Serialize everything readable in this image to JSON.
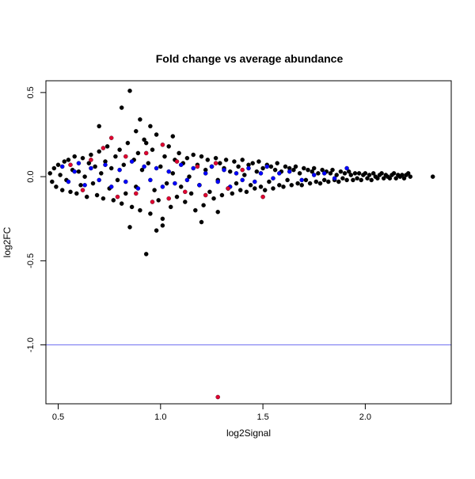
{
  "chart_data": {
    "type": "scatter",
    "title": "Fold change vs average abundance",
    "xlabel": "log2Signal",
    "ylabel": "log2FC",
    "xlim": [
      0.44,
      2.42
    ],
    "ylim": [
      -1.35,
      0.57
    ],
    "x_ticks": [
      0.5,
      1.0,
      1.5,
      2.0
    ],
    "x_tick_labels": [
      "0.5",
      "1.0",
      "1.5",
      "2.0"
    ],
    "y_ticks": [
      0.5,
      0.0,
      -0.5,
      -1.0
    ],
    "y_tick_labels": [
      "0.5",
      "0.0",
      "-0.5",
      "-1.0"
    ],
    "reference_line": {
      "y": -1.0,
      "color": "#6e6ef0"
    },
    "grid": false,
    "legend": "none",
    "colors": {
      "background_genes": "#000000",
      "highlight_blue": "#0000ff",
      "highlight_red": "#e00030",
      "axis": "#000000"
    },
    "series": [
      {
        "color": "#000000",
        "points": [
          [
            0.46,
            0.02
          ],
          [
            0.47,
            -0.03
          ],
          [
            0.48,
            0.05
          ],
          [
            0.49,
            -0.06
          ],
          [
            0.5,
            0.07
          ],
          [
            0.51,
            0.01
          ],
          [
            0.52,
            -0.08
          ],
          [
            0.53,
            0.09
          ],
          [
            0.54,
            -0.02
          ],
          [
            0.55,
            0.1
          ],
          [
            0.56,
            -0.09
          ],
          [
            0.57,
            0.04
          ],
          [
            0.58,
            0.12
          ],
          [
            0.59,
            -0.1
          ],
          [
            0.6,
            0.03
          ],
          [
            0.61,
            -0.05
          ],
          [
            0.62,
            0.11
          ],
          [
            0.63,
            0.0
          ],
          [
            0.64,
            -0.12
          ],
          [
            0.65,
            0.08
          ],
          [
            0.66,
            0.13
          ],
          [
            0.67,
            -0.04
          ],
          [
            0.68,
            0.06
          ],
          [
            0.69,
            -0.11
          ],
          [
            0.7,
            0.15
          ],
          [
            0.71,
            0.02
          ],
          [
            0.72,
            -0.13
          ],
          [
            0.73,
            0.09
          ],
          [
            0.74,
            0.18
          ],
          [
            0.75,
            -0.07
          ],
          [
            0.76,
            0.05
          ],
          [
            0.77,
            -0.14
          ],
          [
            0.78,
            0.12
          ],
          [
            0.79,
            -0.02
          ],
          [
            0.8,
            0.16
          ],
          [
            0.81,
            -0.16
          ],
          [
            0.82,
            0.07
          ],
          [
            0.83,
            -0.1
          ],
          [
            0.84,
            0.2
          ],
          [
            0.85,
            0.51
          ],
          [
            0.86,
            -0.18
          ],
          [
            0.87,
            0.1
          ],
          [
            0.88,
            -0.06
          ],
          [
            0.89,
            0.14
          ],
          [
            0.9,
            -0.2
          ],
          [
            0.91,
            0.04
          ],
          [
            0.92,
            0.22
          ],
          [
            0.93,
            -0.46
          ],
          [
            0.94,
            0.08
          ],
          [
            0.95,
            -0.22
          ],
          [
            0.96,
            0.16
          ],
          [
            0.97,
            -0.08
          ],
          [
            0.98,
            0.25
          ],
          [
            0.99,
            -0.14
          ],
          [
            1.0,
            0.06
          ],
          [
            1.01,
            -0.25
          ],
          [
            1.02,
            0.12
          ],
          [
            1.03,
            -0.04
          ],
          [
            1.04,
            0.18
          ],
          [
            1.05,
            -0.18
          ],
          [
            1.06,
            0.02
          ],
          [
            1.07,
            0.1
          ],
          [
            1.08,
            -0.12
          ],
          [
            1.09,
            0.14
          ],
          [
            1.1,
            -0.06
          ],
          [
            1.11,
            0.08
          ],
          [
            1.12,
            -0.15
          ],
          [
            1.13,
            0.11
          ],
          [
            1.14,
            0.0
          ],
          [
            1.15,
            -0.1
          ],
          [
            1.16,
            0.13
          ],
          [
            1.17,
            -0.2
          ],
          [
            1.18,
            0.07
          ],
          [
            1.19,
            -0.05
          ],
          [
            1.2,
            0.12
          ],
          [
            1.21,
            -0.17
          ],
          [
            1.22,
            0.04
          ],
          [
            1.23,
            0.1
          ],
          [
            1.24,
            -0.09
          ],
          [
            1.25,
            0.06
          ],
          [
            1.26,
            -0.13
          ],
          [
            1.27,
            0.11
          ],
          [
            1.28,
            -0.02
          ],
          [
            1.29,
            0.08
          ],
          [
            1.3,
            -0.11
          ],
          [
            1.31,
            0.05
          ],
          [
            1.32,
            0.1
          ],
          [
            1.33,
            -0.07
          ],
          [
            1.34,
            0.03
          ],
          [
            1.35,
            -0.1
          ],
          [
            1.36,
            0.09
          ],
          [
            1.37,
            -0.04
          ],
          [
            1.38,
            0.06
          ],
          [
            1.39,
            -0.08
          ],
          [
            1.4,
            0.1
          ],
          [
            1.41,
            0.01
          ],
          [
            1.42,
            -0.09
          ],
          [
            1.43,
            0.07
          ],
          [
            1.44,
            -0.05
          ],
          [
            1.45,
            0.08
          ],
          [
            1.46,
            -0.07
          ],
          [
            1.47,
            0.03
          ],
          [
            1.48,
            0.09
          ],
          [
            1.49,
            -0.06
          ],
          [
            1.5,
            0.05
          ],
          [
            1.51,
            -0.08
          ],
          [
            1.52,
            0.07
          ],
          [
            1.53,
            -0.03
          ],
          [
            1.54,
            0.06
          ],
          [
            1.55,
            -0.07
          ],
          [
            1.56,
            0.04
          ],
          [
            1.57,
            0.08
          ],
          [
            1.58,
            -0.05
          ],
          [
            1.59,
            0.03
          ],
          [
            1.6,
            -0.06
          ],
          [
            1.61,
            0.06
          ],
          [
            1.62,
            -0.02
          ],
          [
            1.63,
            0.05
          ],
          [
            1.64,
            -0.05
          ],
          [
            1.65,
            0.04
          ],
          [
            1.66,
            0.06
          ],
          [
            1.67,
            -0.04
          ],
          [
            1.68,
            0.02
          ],
          [
            1.69,
            -0.05
          ],
          [
            1.7,
            0.05
          ],
          [
            1.71,
            -0.02
          ],
          [
            1.72,
            0.04
          ],
          [
            1.73,
            -0.04
          ],
          [
            1.74,
            0.03
          ],
          [
            1.75,
            0.05
          ],
          [
            1.76,
            -0.03
          ],
          [
            1.77,
            0.02
          ],
          [
            1.78,
            -0.04
          ],
          [
            1.79,
            0.04
          ],
          [
            1.8,
            -0.02
          ],
          [
            1.81,
            0.03
          ],
          [
            1.82,
            -0.03
          ],
          [
            1.83,
            0.02
          ],
          [
            1.84,
            0.04
          ],
          [
            1.85,
            -0.02
          ],
          [
            1.86,
            0.01
          ],
          [
            1.87,
            -0.03
          ],
          [
            1.88,
            0.03
          ],
          [
            1.89,
            -0.01
          ],
          [
            1.9,
            0.02
          ],
          [
            1.91,
            -0.02
          ],
          [
            1.92,
            0.03
          ],
          [
            1.93,
            0.01
          ],
          [
            1.94,
            -0.02
          ],
          [
            1.95,
            0.02
          ],
          [
            1.96,
            -0.01
          ],
          [
            1.97,
            0.02
          ],
          [
            1.98,
            -0.02
          ],
          [
            1.99,
            0.01
          ],
          [
            2.0,
            0.02
          ],
          [
            2.01,
            -0.01
          ],
          [
            2.02,
            0.01
          ],
          [
            2.03,
            -0.02
          ],
          [
            2.04,
            0.02
          ],
          [
            2.05,
            0.0
          ],
          [
            2.06,
            -0.01
          ],
          [
            2.07,
            0.01
          ],
          [
            2.08,
            0.02
          ],
          [
            2.09,
            -0.01
          ],
          [
            2.1,
            0.01
          ],
          [
            2.11,
            0.0
          ],
          [
            2.12,
            -0.01
          ],
          [
            2.13,
            0.01
          ],
          [
            2.14,
            0.02
          ],
          [
            2.15,
            -0.01
          ],
          [
            2.16,
            0.01
          ],
          [
            2.17,
            0.0
          ],
          [
            2.18,
            0.01
          ],
          [
            2.19,
            -0.01
          ],
          [
            2.2,
            0.01
          ],
          [
            2.21,
            0.02
          ],
          [
            2.22,
            0.0
          ],
          [
            2.33,
            0.0
          ],
          [
            0.81,
            0.41
          ],
          [
            0.88,
            0.27
          ],
          [
            0.9,
            0.34
          ],
          [
            0.95,
            0.3
          ],
          [
            1.06,
            0.24
          ],
          [
            0.98,
            -0.32
          ],
          [
            1.01,
            -0.29
          ],
          [
            0.85,
            -0.3
          ],
          [
            1.2,
            -0.27
          ],
          [
            1.28,
            -0.21
          ],
          [
            0.7,
            0.3
          ],
          [
            0.93,
            0.2
          ]
        ]
      },
      {
        "color": "#0000ff",
        "points": [
          [
            0.52,
            0.06
          ],
          [
            0.55,
            -0.03
          ],
          [
            0.58,
            0.03
          ],
          [
            0.6,
            0.08
          ],
          [
            0.63,
            -0.05
          ],
          [
            0.66,
            0.05
          ],
          [
            0.7,
            -0.02
          ],
          [
            0.73,
            0.07
          ],
          [
            0.76,
            -0.06
          ],
          [
            0.8,
            0.04
          ],
          [
            0.83,
            -0.03
          ],
          [
            0.86,
            0.09
          ],
          [
            0.89,
            -0.07
          ],
          [
            0.92,
            0.06
          ],
          [
            0.95,
            -0.02
          ],
          [
            0.98,
            0.05
          ],
          [
            1.01,
            -0.06
          ],
          [
            1.04,
            0.03
          ],
          [
            1.07,
            -0.04
          ],
          [
            1.1,
            0.07
          ],
          [
            1.13,
            -0.02
          ],
          [
            1.16,
            0.05
          ],
          [
            1.19,
            -0.05
          ],
          [
            1.22,
            0.02
          ],
          [
            1.25,
            0.06
          ],
          [
            1.28,
            -0.03
          ],
          [
            1.31,
            0.04
          ],
          [
            1.34,
            -0.06
          ],
          [
            1.37,
            0.02
          ],
          [
            1.4,
            -0.02
          ],
          [
            1.43,
            0.05
          ],
          [
            1.46,
            -0.03
          ],
          [
            1.49,
            0.02
          ],
          [
            1.52,
            0.06
          ],
          [
            1.55,
            -0.01
          ],
          [
            1.58,
            0.02
          ],
          [
            1.63,
            0.03
          ],
          [
            1.69,
            -0.02
          ],
          [
            1.75,
            0.01
          ],
          [
            1.8,
            0.02
          ],
          [
            1.85,
            -0.01
          ],
          [
            1.91,
            0.05
          ]
        ]
      },
      {
        "color": "#e00030",
        "points": [
          [
            0.56,
            0.07
          ],
          [
            0.62,
            -0.08
          ],
          [
            0.66,
            0.1
          ],
          [
            0.72,
            0.17
          ],
          [
            0.76,
            0.23
          ],
          [
            0.79,
            -0.12
          ],
          [
            0.83,
            0.12
          ],
          [
            0.88,
            -0.1
          ],
          [
            0.93,
            0.14
          ],
          [
            0.96,
            -0.15
          ],
          [
            1.01,
            0.19
          ],
          [
            1.04,
            -0.13
          ],
          [
            1.08,
            0.09
          ],
          [
            1.12,
            -0.09
          ],
          [
            1.18,
            0.06
          ],
          [
            1.22,
            -0.11
          ],
          [
            1.27,
            0.08
          ],
          [
            1.33,
            -0.07
          ],
          [
            1.4,
            0.04
          ],
          [
            1.5,
            -0.12
          ],
          [
            1.28,
            -1.31
          ]
        ]
      }
    ]
  }
}
